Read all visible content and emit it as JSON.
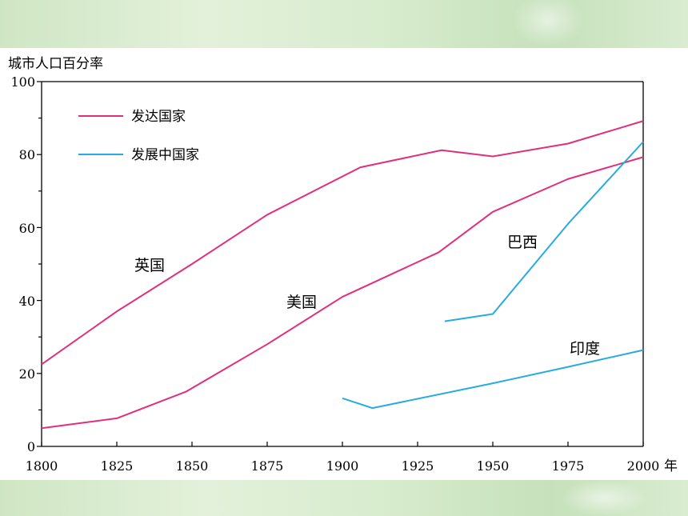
{
  "colors": {
    "developed": "#e0307c",
    "developing": "#29aae2"
  },
  "chart_data": {
    "type": "line",
    "ylabel": "城市人口百分率",
    "xlabel": "年",
    "xlim": [
      1800,
      2000
    ],
    "ylim": [
      0,
      100
    ],
    "x_ticks": [
      "1800",
      "1825",
      "1850",
      "1875",
      "1900",
      "1925",
      "1950",
      "1975",
      "2000"
    ],
    "y_ticks": [
      "0",
      "20",
      "40",
      "60",
      "80",
      "100"
    ],
    "legend": [
      {
        "label": "发达国家",
        "color": "#e0307c"
      },
      {
        "label": "发展中国家",
        "color": "#29aae2"
      }
    ],
    "series": [
      {
        "name": "英国",
        "group": "发达国家",
        "points": [
          [
            1800,
            22.5
          ],
          [
            1825,
            37
          ],
          [
            1850,
            50
          ],
          [
            1875,
            63.5
          ],
          [
            1906,
            76.5
          ],
          [
            1933,
            81.2
          ],
          [
            1950,
            79.5
          ],
          [
            1975,
            83
          ],
          [
            2000,
            89.2
          ]
        ]
      },
      {
        "name": "美国",
        "group": "发达国家",
        "points": [
          [
            1800,
            5
          ],
          [
            1825,
            7.7
          ],
          [
            1848,
            15
          ],
          [
            1875,
            28
          ],
          [
            1900,
            41
          ],
          [
            1932,
            53.2
          ],
          [
            1950,
            64.3
          ],
          [
            1975,
            73.3
          ],
          [
            2000,
            79.3
          ]
        ]
      },
      {
        "name": "巴西",
        "group": "发展中国家",
        "points": [
          [
            1934,
            34.3
          ],
          [
            1950,
            36.3
          ],
          [
            1975,
            61
          ],
          [
            2000,
            83.5
          ]
        ]
      },
      {
        "name": "印度",
        "group": "发展中国家",
        "points": [
          [
            1900,
            13.2
          ],
          [
            1910,
            10.5
          ],
          [
            1950,
            17.3
          ],
          [
            1975,
            21.8
          ],
          [
            2000,
            26.4
          ]
        ]
      }
    ],
    "annotations": [
      "英国",
      "美国",
      "巴西",
      "印度"
    ]
  }
}
